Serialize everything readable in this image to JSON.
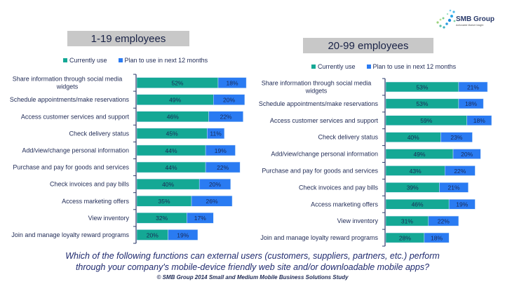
{
  "logo": {
    "name": "SMB Group",
    "tagline": "Actionable Market Insight"
  },
  "colors": {
    "current": "#14a895",
    "plan": "#2a7bf2",
    "title_box": "#c8c8c8",
    "text": "#1f2a55"
  },
  "caption": {
    "question_line1": "Which of the following functions can external users (customers, suppliers, partners, etc.) perform",
    "question_line2": "through your company's mobile-device friendly web site and/or downloadable mobile apps?",
    "source": "© SMB Group 2014 Small and Medium Mobile Business Solutions Study"
  },
  "chart_data": [
    {
      "type": "bar",
      "orientation": "horizontal",
      "stacked": true,
      "title": "1-19 employees",
      "legend": [
        "Currently use",
        "Plan to use in next 12 months"
      ],
      "legend_position": "top",
      "categories": [
        "Share information through social media widgets",
        "Schedule appointments/make reservations",
        "Access customer services and support",
        "Check delivery status",
        "Add/view/change personal information",
        "Purchase and pay for goods and services",
        "Check invoices and pay bills",
        "Access marketing offers",
        "View inventory",
        "Join and manage loyalty reward programs"
      ],
      "series": [
        {
          "name": "Currently use",
          "values": [
            52,
            49,
            46,
            45,
            44,
            44,
            40,
            35,
            32,
            20
          ]
        },
        {
          "name": "Plan to use in next 12 months",
          "values": [
            18,
            20,
            22,
            11,
            19,
            22,
            20,
            26,
            17,
            19
          ]
        }
      ],
      "value_suffix": "%",
      "grid": false
    },
    {
      "type": "bar",
      "orientation": "horizontal",
      "stacked": true,
      "title": "20-99 employees",
      "legend": [
        "Currently use",
        "Plan to use in next 12 months"
      ],
      "legend_position": "top",
      "categories": [
        "Share information through social media widgets",
        "Schedule appointments/make reservations",
        "Access customer services and support",
        "Check delivery status",
        "Add/view/change personal information",
        "Purchase and pay for goods and services",
        "Check invoices and pay bills",
        "Access marketing offers",
        "View inventory",
        "Join and manage loyalty reward programs"
      ],
      "series": [
        {
          "name": "Currently use",
          "values": [
            53,
            53,
            59,
            40,
            49,
            43,
            39,
            46,
            31,
            28
          ]
        },
        {
          "name": "Plan to use in next 12 months",
          "values": [
            21,
            18,
            18,
            23,
            20,
            22,
            21,
            19,
            22,
            18
          ]
        }
      ],
      "value_suffix": "%",
      "grid": false
    }
  ]
}
